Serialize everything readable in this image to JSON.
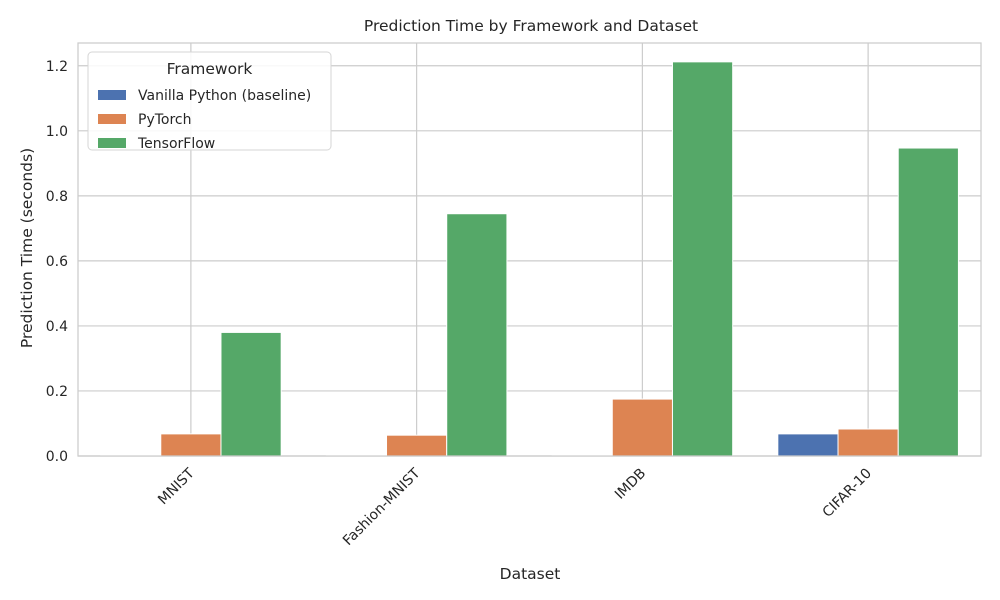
{
  "chart_data": {
    "type": "bar",
    "title": "Prediction Time by Framework and Dataset",
    "xlabel": "Dataset",
    "ylabel": "Prediction Time (seconds)",
    "categories": [
      "MNIST",
      "Fashion-MNIST",
      "IMDB",
      "CIFAR-10"
    ],
    "series": [
      {
        "name": "Vanilla Python (baseline)",
        "color": "#4c72b0",
        "values": [
          0.002,
          0.002,
          0.002,
          0.068
        ]
      },
      {
        "name": "PyTorch",
        "color": "#dd8452",
        "values": [
          0.068,
          0.064,
          0.175,
          0.083
        ]
      },
      {
        "name": "TensorFlow",
        "color": "#55a868",
        "values": [
          0.38,
          0.745,
          1.212,
          0.947
        ]
      }
    ],
    "ylim": [
      0,
      1.27
    ],
    "yticks": [
      "0.0",
      "0.2",
      "0.4",
      "0.6",
      "0.8",
      "1.0",
      "1.2"
    ],
    "grid": true,
    "legend": {
      "title": "Framework",
      "position": "top-left"
    }
  }
}
